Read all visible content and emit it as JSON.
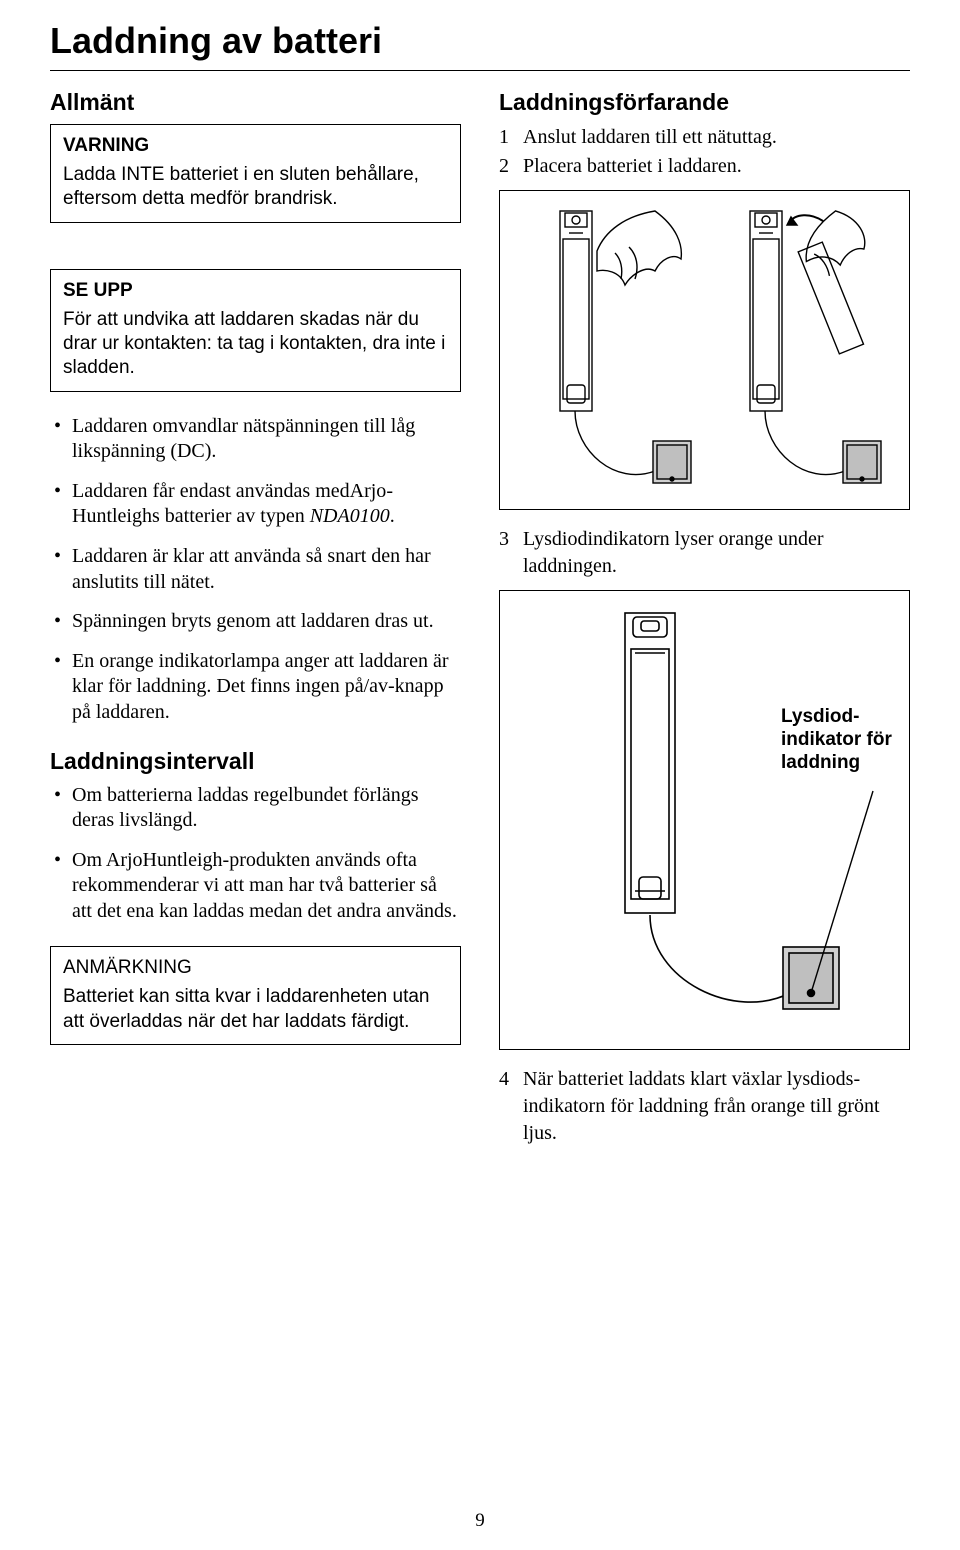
{
  "title": "Laddning av batteri",
  "page_number": "9",
  "left": {
    "section1_heading": "Allmänt",
    "warning_title": "VARNING",
    "warning_body": "Ladda INTE batteriet i en sluten behållare, eftersom detta medför brandrisk.",
    "caution_title": "SE UPP",
    "caution_body": "För att undvika att laddaren skadas när du drar ur kontakten: ta tag i kontakten, dra inte i sladden.",
    "bullets1": [
      "Laddaren omvandlar nätspänningen till låg likspänning (DC).",
      "Laddaren får endast användas medArjo­Huntleighs batterier av typen <i>NDA0100</i>.",
      "Laddaren är klar att använda så snart den har anslutits till nätet.",
      "Spänningen bryts genom att laddaren dras ut.",
      "En orange indikatorlampa anger att laddaren är klar för laddning. Det finns ingen på/av-knapp på laddaren."
    ],
    "section2_heading": "Laddningsintervall",
    "bullets2": [
      "Om batterierna laddas regelbundet förlängs deras livslängd.",
      "Om ArjoHuntleigh-produkten används ofta rekommenderar vi att man har två batterier så att det ena kan laddas medan det andra används."
    ],
    "note_title": "ANMÄRKNING",
    "note_body": "Batteriet kan sitta kvar i laddarenheten utan att överladdas när det har laddats färdigt."
  },
  "right": {
    "procedure_heading": "Laddningsförfarande",
    "step1": "Anslut laddaren till ett nätuttag.",
    "step2": "Placera batteriet i laddaren.",
    "step3": "Lysdiodindikatorn lyser orange under laddningen.",
    "step4": "När batteriet laddats klart växlar lysdiods­indikatorn för laddning från orange till grönt ljus.",
    "callout_label": "Lysdiod­indikator för laddning"
  }
}
